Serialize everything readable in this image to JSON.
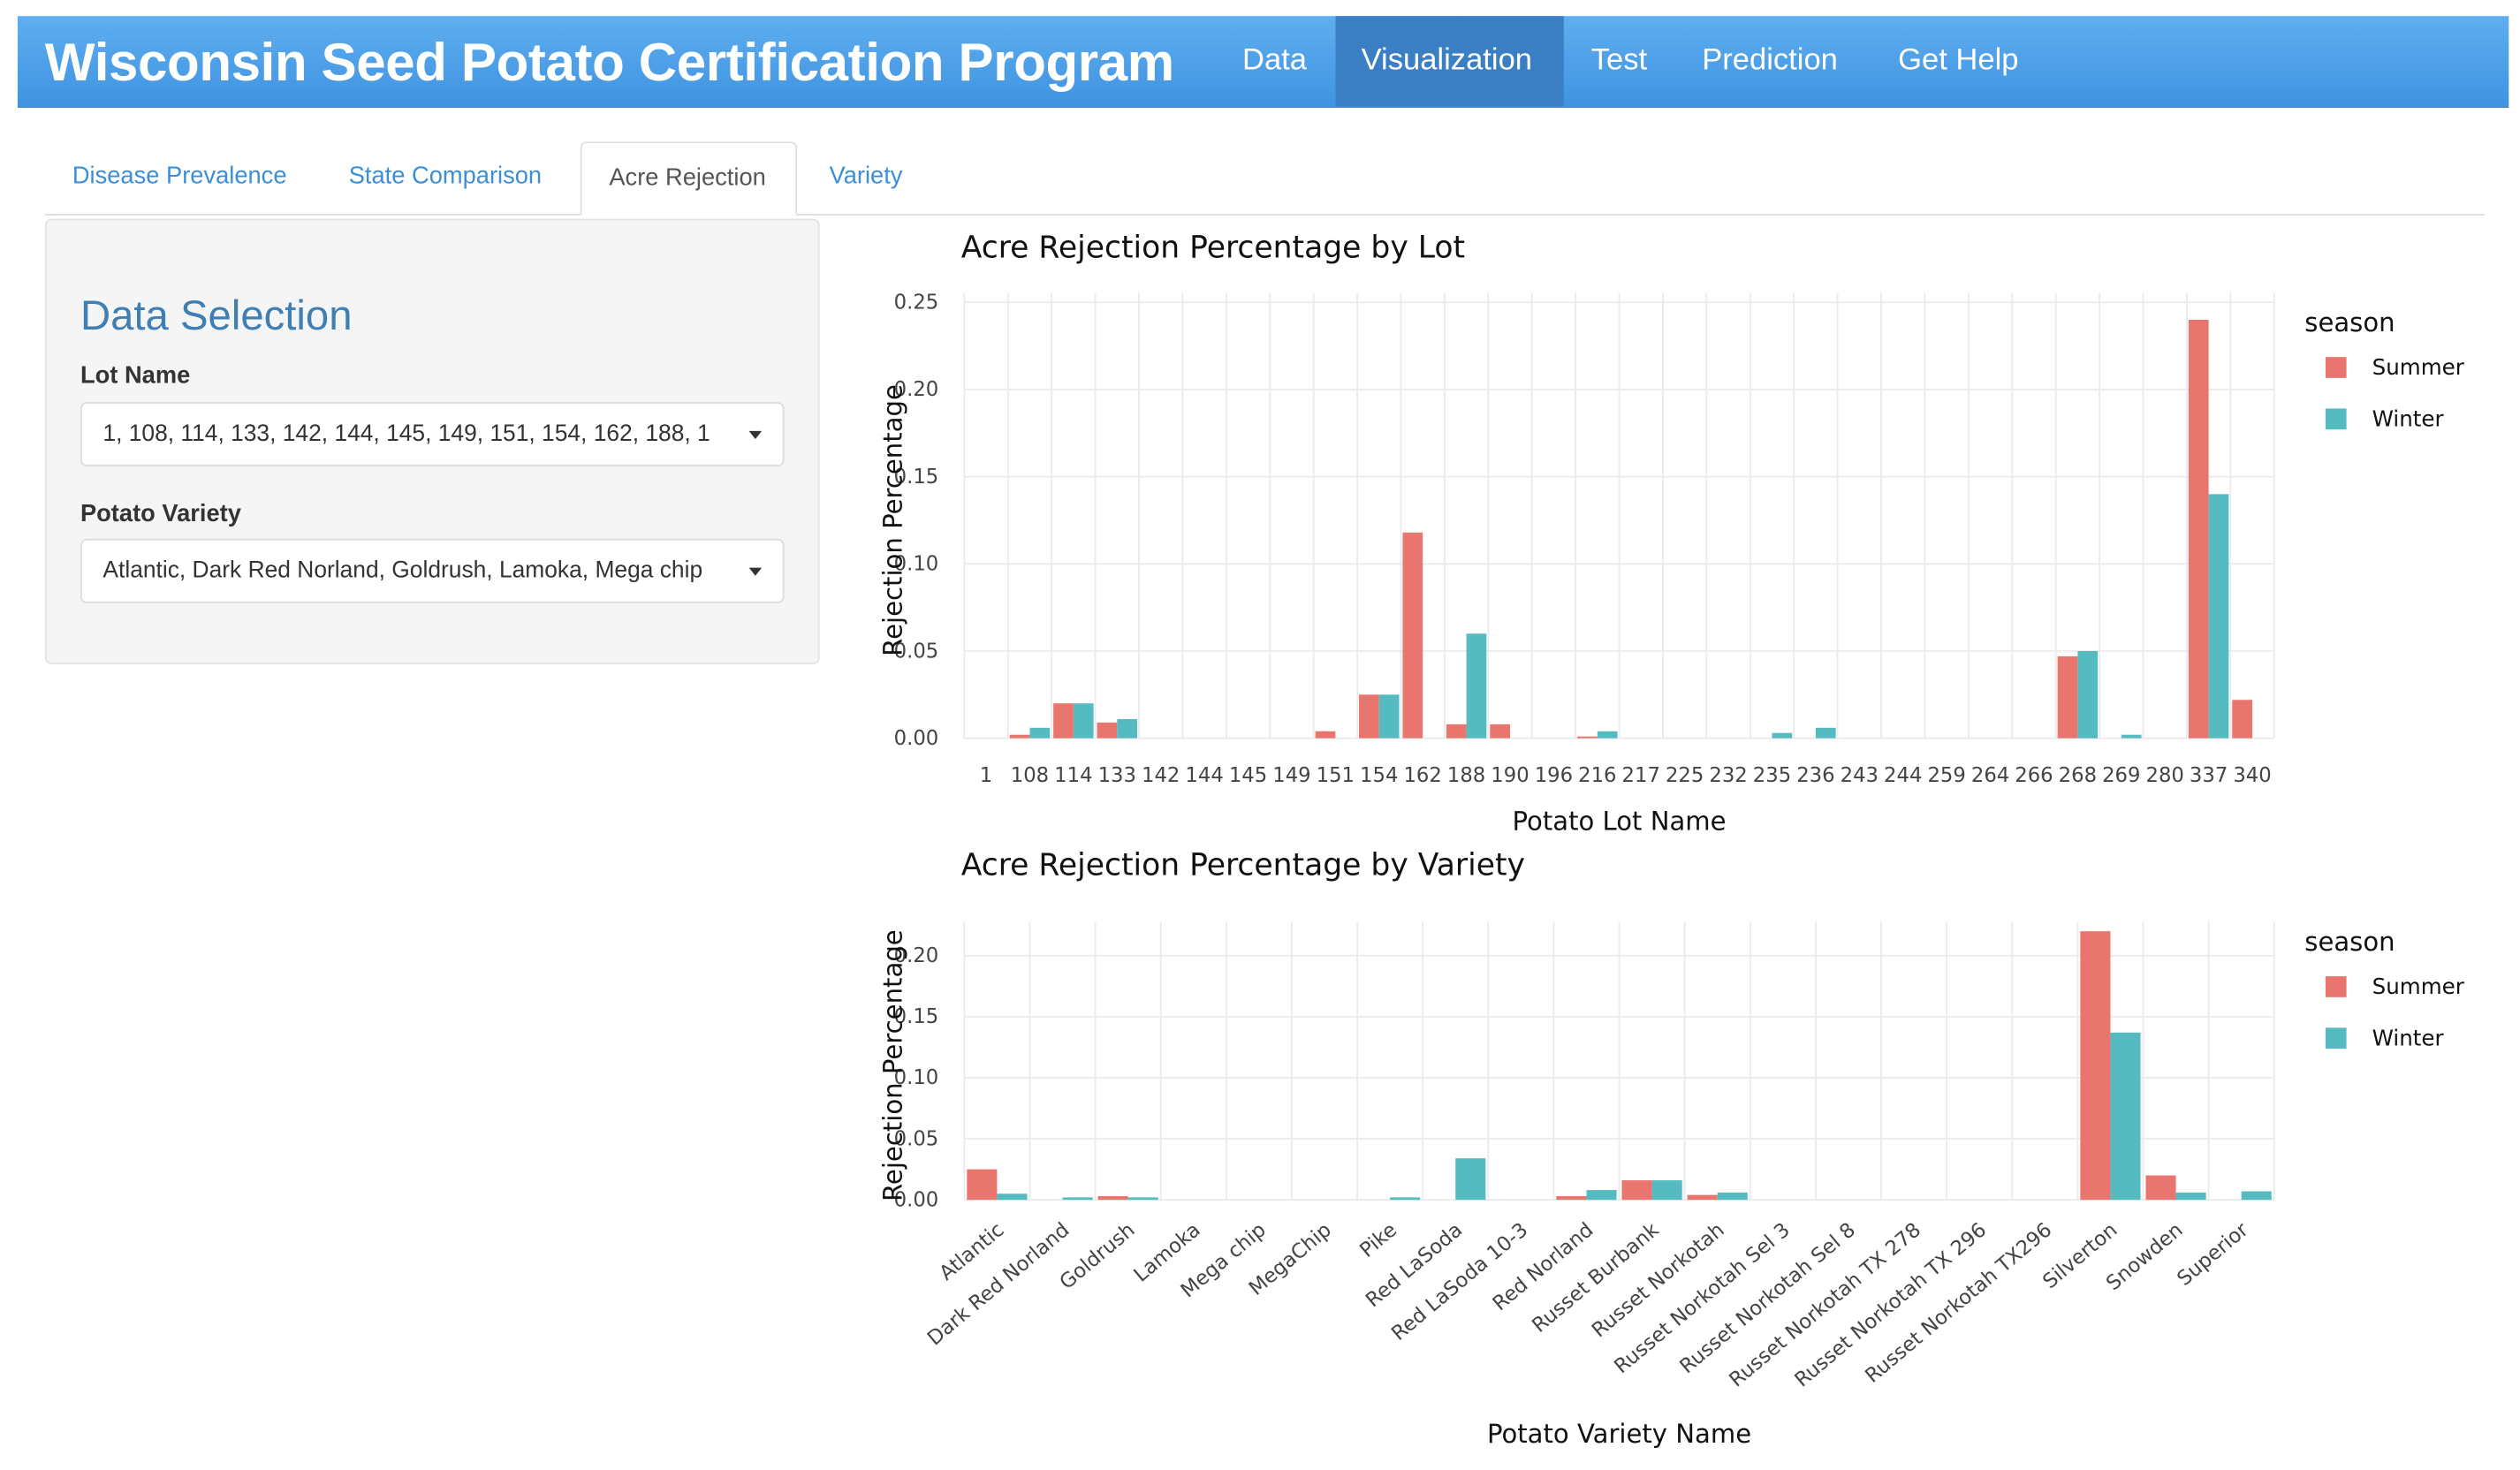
{
  "navbar": {
    "brand": "Wisconsin Seed Potato Certification Program",
    "items": [
      "Data",
      "Visualization",
      "Test",
      "Prediction",
      "Get Help"
    ],
    "active": "Visualization"
  },
  "tabs": {
    "items": [
      "Disease Prevalence",
      "State Comparison",
      "Acre Rejection",
      "Variety"
    ],
    "active": "Acre Rejection"
  },
  "sidebar": {
    "title": "Data Selection",
    "lot_label": "Lot Name",
    "lot_value": "1, 108, 114, 133, 142, 144, 145, 149, 151, 154, 162, 188, 1",
    "variety_label": "Potato Variety",
    "variety_value": "Atlantic, Dark Red Norland, Goldrush, Lamoka, Mega chip"
  },
  "colors": {
    "summer": "#E8766E",
    "winter": "#56BBC0"
  },
  "chart_data": [
    {
      "type": "bar",
      "title": "Acre Rejection Percentage by Lot",
      "xlabel": "Potato Lot Name",
      "ylabel": "Rejection Percentage",
      "ylim": [
        0,
        0.25
      ],
      "yticks": [
        "0.00",
        "0.05",
        "0.10",
        "0.15",
        "0.20",
        "0.25"
      ],
      "legend_title": "season",
      "legend_position": "right",
      "grid": true,
      "categories": [
        "1",
        "108",
        "114",
        "133",
        "142",
        "144",
        "145",
        "149",
        "151",
        "154",
        "162",
        "188",
        "190",
        "196",
        "216",
        "217",
        "225",
        "232",
        "235",
        "236",
        "243",
        "244",
        "259",
        "264",
        "266",
        "268",
        "269",
        "280",
        "337",
        "340"
      ],
      "series": [
        {
          "name": "Summer",
          "values": [
            0,
            0.002,
            0.02,
            0.009,
            0,
            0,
            0,
            0,
            0.004,
            0.025,
            0.118,
            0.008,
            0.008,
            0,
            0.001,
            0,
            0,
            0,
            0,
            0,
            0,
            0,
            0,
            0,
            0,
            0.047,
            0,
            0,
            0.24,
            0.022
          ]
        },
        {
          "name": "Winter",
          "values": [
            0,
            0.006,
            0.02,
            0.011,
            0,
            0,
            0,
            0,
            0,
            0.025,
            0,
            0.06,
            0,
            0,
            0.004,
            0,
            0,
            0,
            0.003,
            0.006,
            0,
            0,
            0,
            0,
            0,
            0.05,
            0.002,
            0,
            0.14,
            0
          ]
        }
      ]
    },
    {
      "type": "bar",
      "title": "Acre Rejection Percentage by Variety",
      "xlabel": "Potato Variety Name",
      "ylabel": "Rejection Percentage",
      "ylim": [
        0,
        0.22
      ],
      "yticks": [
        "0.00",
        "0.05",
        "0.10",
        "0.15",
        "0.20"
      ],
      "legend_title": "season",
      "legend_position": "right",
      "grid": true,
      "categories": [
        "Atlantic",
        "Dark Red Norland",
        "Goldrush",
        "Lamoka",
        "Mega chip",
        "MegaChip",
        "Pike",
        "Red LaSoda",
        "Red LaSoda 10-3",
        "Red Norland",
        "Russet Burbank",
        "Russet Norkotah",
        "Russet Norkotah Sel 3",
        "Russet Norkotah Sel 8",
        "Russet Norkotah TX 278",
        "Russet Norkotah TX 296",
        "Russet Norkotah TX296",
        "Silverton",
        "Snowden",
        "Superior"
      ],
      "series": [
        {
          "name": "Summer",
          "values": [
            0.025,
            0,
            0.003,
            0,
            0,
            0,
            0,
            0,
            0,
            0.003,
            0.016,
            0.004,
            0,
            0,
            0,
            0,
            0,
            0.22,
            0.02,
            0
          ]
        },
        {
          "name": "Winter",
          "values": [
            0.005,
            0.002,
            0.002,
            0,
            0,
            0,
            0.002,
            0.034,
            0,
            0.008,
            0.016,
            0.006,
            0,
            0,
            0,
            0,
            0,
            0.137,
            0.006,
            0.007
          ]
        }
      ]
    }
  ]
}
